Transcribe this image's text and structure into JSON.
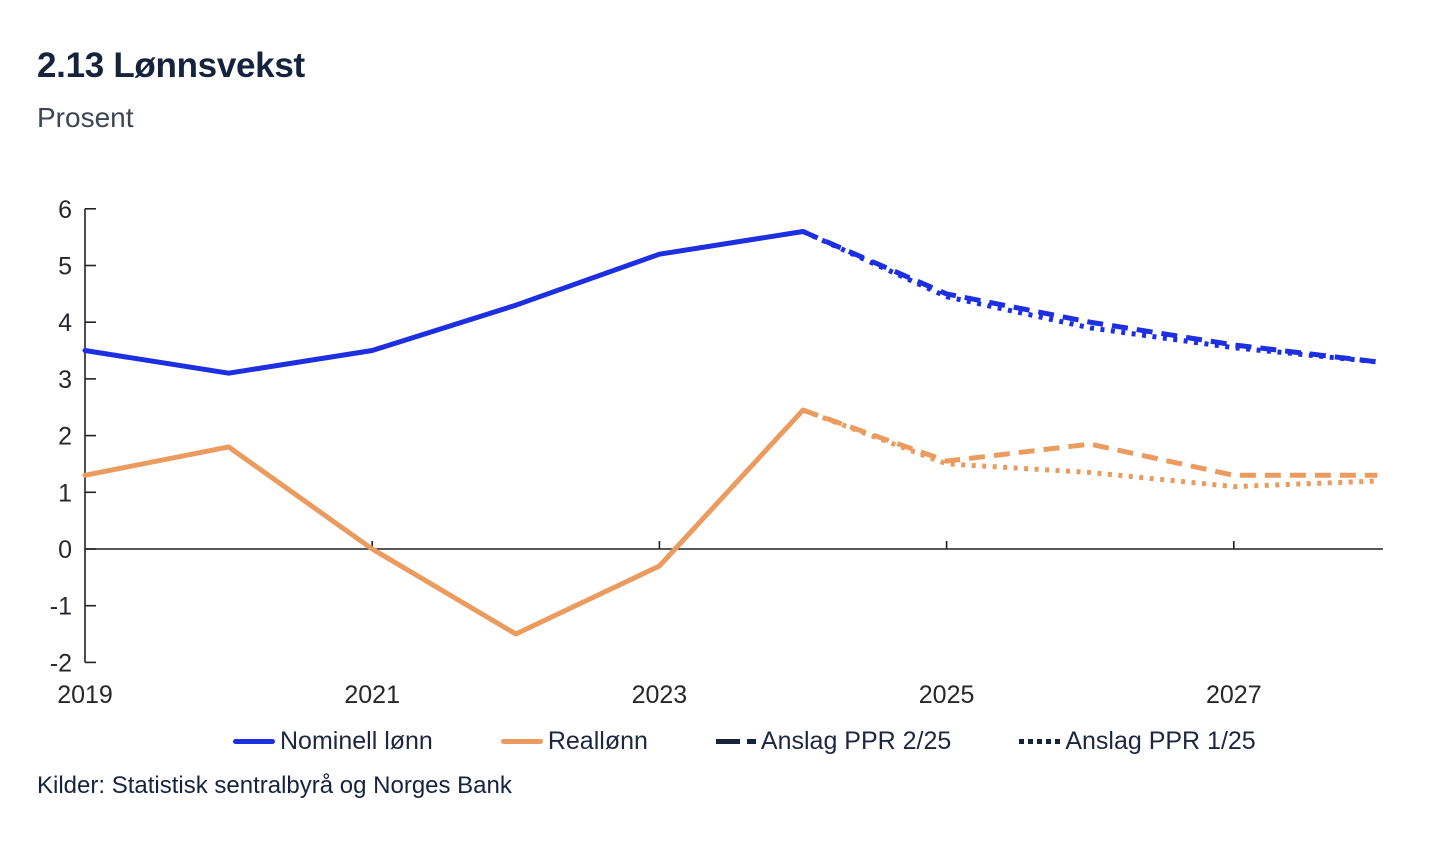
{
  "header": {
    "title": "2.13 Lønnsvekst",
    "subtitle": "Prosent"
  },
  "source": "Kilder: Statistisk sentralbyrå og Norges Bank",
  "colors": {
    "blue": "#1c2fe1",
    "orange": "#ec9b5f",
    "navy": "#16233d",
    "axis": "#222222"
  },
  "legend": {
    "items": [
      {
        "label": "Nominell lønn",
        "style": "solid",
        "color": "blue"
      },
      {
        "label": "Reallønn",
        "style": "solid",
        "color": "orange"
      },
      {
        "label": "Anslag PPR 2/25",
        "style": "dashed",
        "color": "navy"
      },
      {
        "label": "Anslag PPR 1/25",
        "style": "dotted",
        "color": "navy"
      }
    ]
  },
  "chart_data": {
    "type": "line",
    "title": "2.13 Lønnsvekst",
    "subtitle": "Prosent",
    "xlabel": "",
    "ylabel": "Prosent",
    "ylim": [
      -2,
      6
    ],
    "x_range": [
      2019,
      2028
    ],
    "y_ticks": [
      6,
      5,
      4,
      3,
      2,
      1,
      0,
      -1,
      -2
    ],
    "x_tick_labels": [
      2019,
      2021,
      2023,
      2025,
      2027
    ],
    "x_tick_marks": [
      2021,
      2023,
      2025,
      2027
    ],
    "grid": false,
    "legend_position": "bottom",
    "series": [
      {
        "name": "Nominell lønn",
        "style": "solid",
        "color": "blue",
        "x": [
          2019,
          2020,
          2021,
          2022,
          2023,
          2024
        ],
        "values": [
          3.5,
          3.1,
          3.5,
          4.3,
          5.2,
          5.6
        ]
      },
      {
        "name": "Reallønn",
        "style": "solid",
        "color": "orange",
        "x": [
          2019,
          2020,
          2021,
          2022,
          2023,
          2024
        ],
        "values": [
          1.3,
          1.8,
          0.0,
          -1.5,
          -0.3,
          2.45
        ]
      },
      {
        "name": "Anslag PPR 2/25 nominell lønn",
        "style": "dashed",
        "color": "blue",
        "x": [
          2024,
          2025,
          2026,
          2027,
          2028
        ],
        "values": [
          5.6,
          4.5,
          4.0,
          3.6,
          3.3
        ]
      },
      {
        "name": "Anslag PPR 1/25 nominell lønn",
        "style": "dotted",
        "color": "blue",
        "x": [
          2024,
          2025,
          2026,
          2027,
          2028
        ],
        "values": [
          5.6,
          4.45,
          3.9,
          3.55,
          3.3
        ]
      },
      {
        "name": "Anslag PPR 2/25 reallønn",
        "style": "dashed",
        "color": "orange",
        "x": [
          2024,
          2025,
          2026,
          2027,
          2028
        ],
        "values": [
          2.45,
          1.55,
          1.85,
          1.3,
          1.3
        ]
      },
      {
        "name": "Anslag PPR 1/25 reallønn",
        "style": "dotted",
        "color": "orange",
        "x": [
          2024,
          2025,
          2026,
          2027,
          2028
        ],
        "values": [
          2.45,
          1.5,
          1.35,
          1.1,
          1.2
        ]
      }
    ]
  }
}
